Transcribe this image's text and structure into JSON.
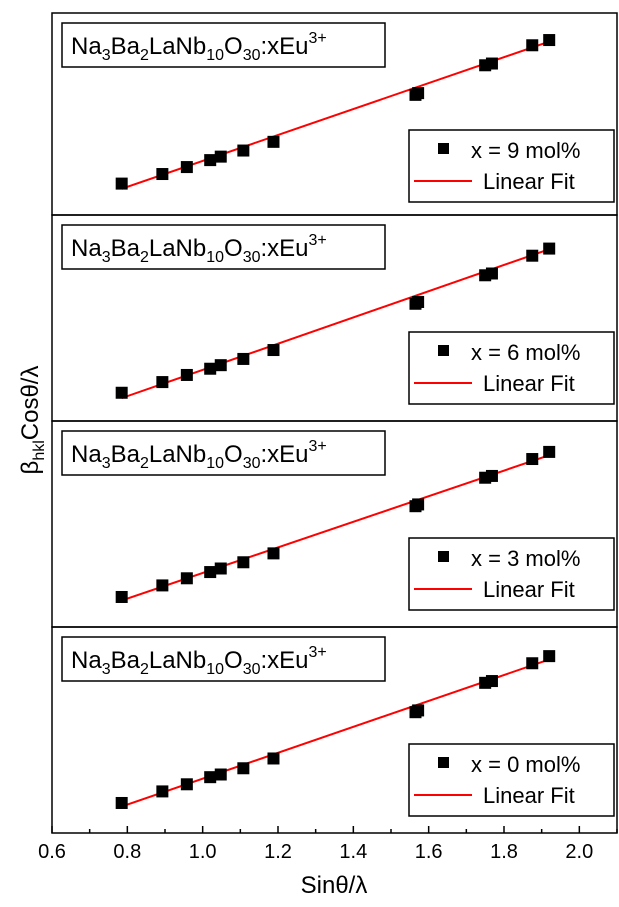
{
  "chart_data": {
    "type": "scatter",
    "layout": "stacked panels sharing x-axis",
    "xlabel": "Sinθ/λ",
    "ylabel_main": "β",
    "ylabel_sub": "hkl",
    "ylabel_rest": "Cosθ/λ",
    "xlim": [
      0.6,
      2.1
    ],
    "ylim": [
      0.0,
      1.0
    ],
    "xticks": [
      "0.6",
      "0.8",
      "1.0",
      "1.2",
      "1.4",
      "1.6",
      "1.8",
      "2.0"
    ],
    "y_tick_labels_shown": false,
    "grid": false,
    "point_color": "#000000",
    "fit_color": "#ff0000",
    "legend_fit_label": "Linear Fit",
    "formula": {
      "na": "Na",
      "na_sub": "3",
      "ba": "Ba",
      "ba_sub": "2",
      "lanb": "LaNb",
      "lanb_sub": "10",
      "o": "O",
      "o_sub": "30",
      "eu": ":xEu",
      "eu_sup": "3+"
    },
    "panels": [
      {
        "legend_label": "x = 9 mol%",
        "x": [
          0.785,
          0.893,
          0.958,
          1.02,
          1.048,
          1.108,
          1.188,
          1.565,
          1.572,
          1.75,
          1.768,
          1.875,
          1.92
        ],
        "y": [
          0.1,
          0.155,
          0.195,
          0.235,
          0.255,
          0.29,
          0.34,
          0.61,
          0.62,
          0.78,
          0.79,
          0.895,
          0.925
        ],
        "fit": {
          "x": [
            0.785,
            1.925
          ],
          "y": [
            0.07,
            0.92
          ]
        }
      },
      {
        "legend_label": "x = 6 mol%",
        "x": [
          0.785,
          0.893,
          0.958,
          1.02,
          1.048,
          1.108,
          1.188,
          1.565,
          1.572,
          1.75,
          1.768,
          1.875,
          1.92
        ],
        "y": [
          0.08,
          0.14,
          0.18,
          0.215,
          0.235,
          0.27,
          0.32,
          0.58,
          0.59,
          0.74,
          0.75,
          0.85,
          0.89
        ],
        "fit": {
          "x": [
            0.785,
            1.925
          ],
          "y": [
            0.05,
            0.89
          ]
        }
      },
      {
        "legend_label": "x = 3 mol%",
        "x": [
          0.785,
          0.893,
          0.958,
          1.02,
          1.048,
          1.108,
          1.188,
          1.565,
          1.572,
          1.75,
          1.768,
          1.875,
          1.92
        ],
        "y": [
          0.09,
          0.155,
          0.195,
          0.23,
          0.25,
          0.285,
          0.335,
          0.6,
          0.61,
          0.76,
          0.77,
          0.865,
          0.905
        ],
        "fit": {
          "x": [
            0.785,
            1.925
          ],
          "y": [
            0.07,
            0.89
          ]
        }
      },
      {
        "legend_label": "x = 0 mol%",
        "x": [
          0.785,
          0.893,
          0.958,
          1.02,
          1.048,
          1.108,
          1.188,
          1.565,
          1.572,
          1.75,
          1.768,
          1.875,
          1.92
        ],
        "y": [
          0.09,
          0.155,
          0.195,
          0.235,
          0.25,
          0.285,
          0.34,
          0.6,
          0.61,
          0.765,
          0.775,
          0.875,
          0.915
        ],
        "fit": {
          "x": [
            0.785,
            1.925
          ],
          "y": [
            0.07,
            0.9
          ]
        }
      }
    ]
  }
}
